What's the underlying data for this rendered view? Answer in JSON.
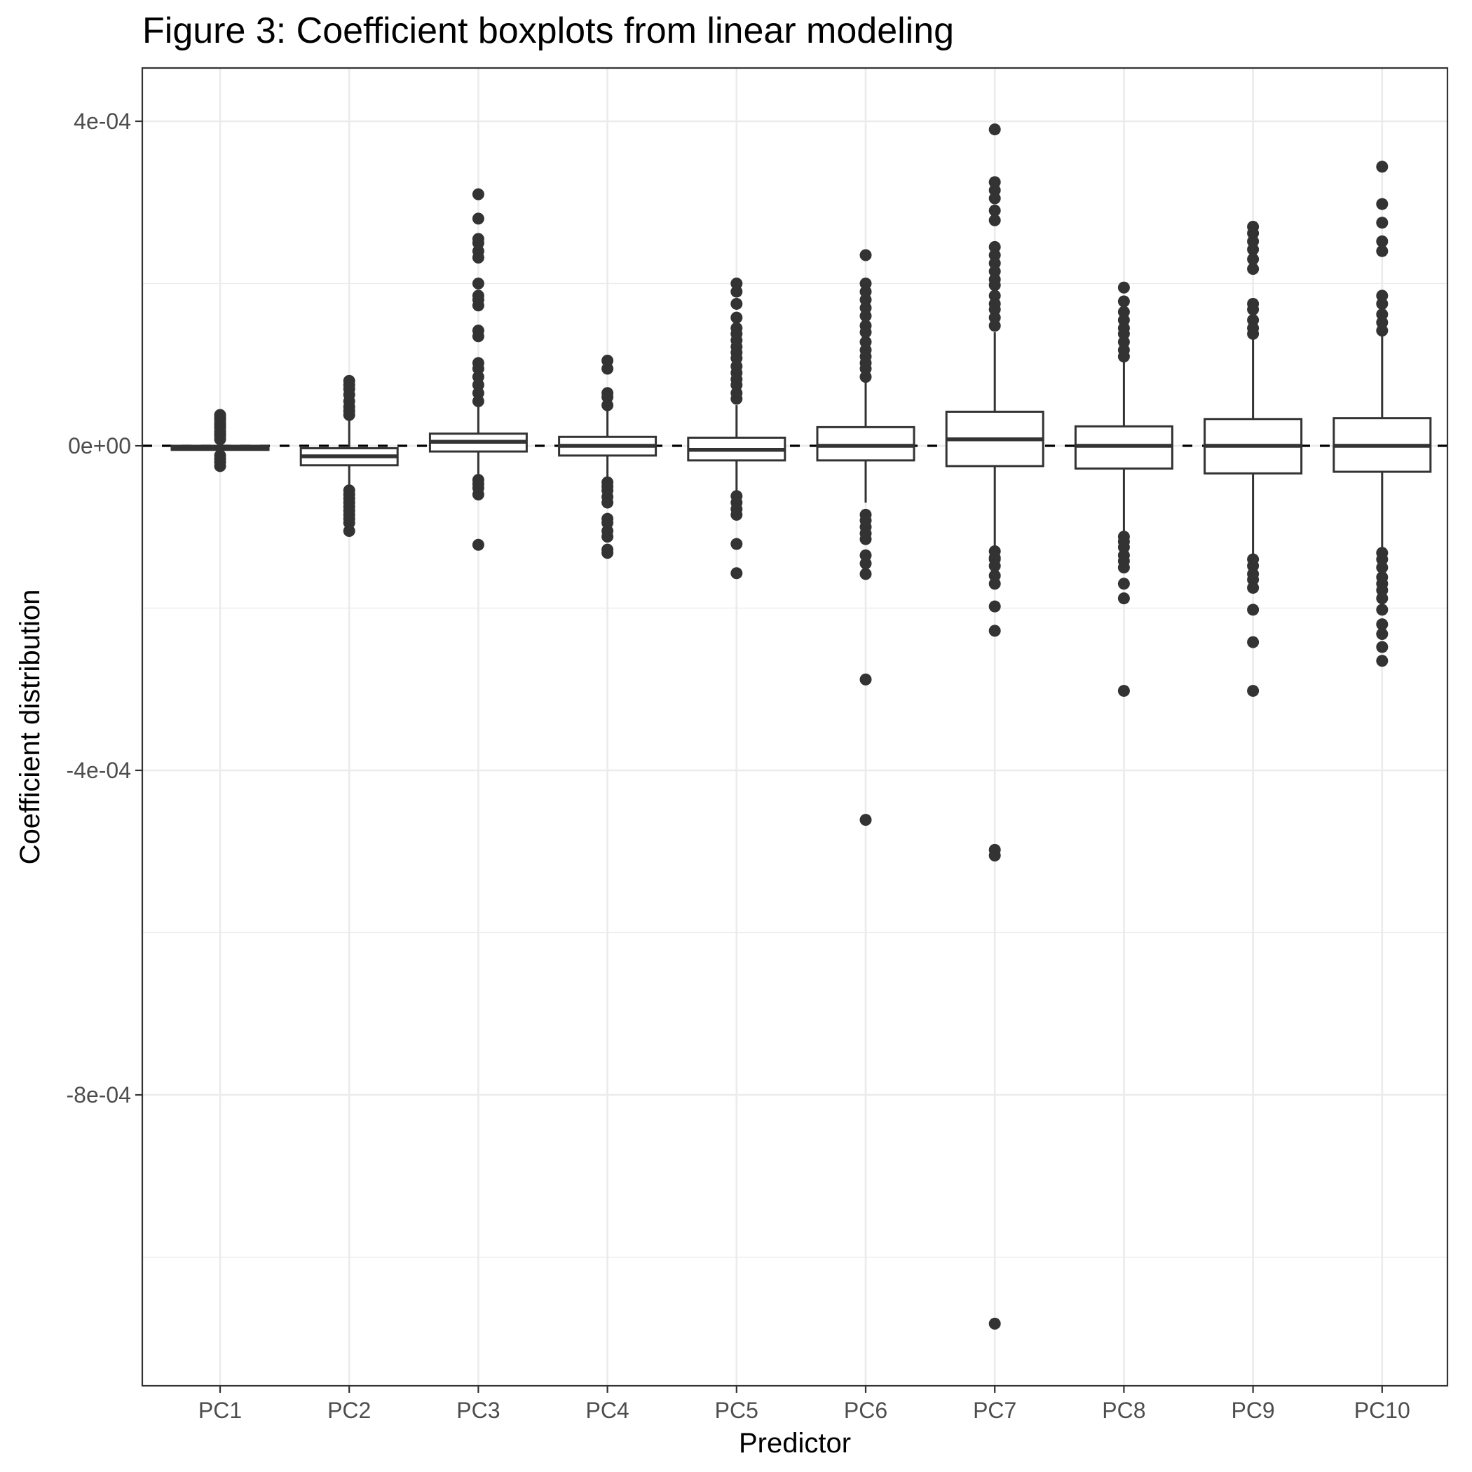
{
  "chart_data": {
    "type": "boxplot",
    "title": "Figure 3: Coefficient boxplots from linear modeling",
    "xlabel": "Predictor",
    "ylabel": "Coefficient distribution",
    "ylim": [
      -0.00113,
      0.00046
    ],
    "yticks": [
      0.0004,
      0,
      -0.0004,
      -0.0008
    ],
    "ytick_labels": [
      "4e-04",
      "0e+00",
      "-4e-04",
      "-8e-04"
    ],
    "grid": true,
    "reference_line": {
      "y": 0,
      "style": "dashed"
    },
    "categories": [
      "PC1",
      "PC2",
      "PC3",
      "PC4",
      "PC5",
      "PC6",
      "PC7",
      "PC8",
      "PC9",
      "PC10"
    ],
    "boxes": [
      {
        "category": "PC1",
        "low": -5e-06,
        "q1": -5e-06,
        "median": -3e-06,
        "q3": 0.0,
        "high": 0.0,
        "outliers": [
          3.8e-05,
          3.5e-05,
          3.2e-05,
          2.8e-05,
          2.5e-05,
          2.2e-05,
          1.8e-05,
          1.5e-05,
          1.2e-05,
          8e-06,
          -1.2e-05,
          -1.6e-05,
          -2e-05,
          -2.5e-05
        ]
      },
      {
        "category": "PC2",
        "low": -5e-05,
        "q1": -2.4e-05,
        "median": -1.3e-05,
        "q3": -3e-06,
        "high": 3.3e-05,
        "outliers": [
          8e-05,
          7.5e-05,
          7e-05,
          6.3e-05,
          5.5e-05,
          4.8e-05,
          4.3e-05,
          3.8e-05,
          -5.5e-05,
          -6e-05,
          -6.5e-05,
          -7e-05,
          -7.5e-05,
          -8e-05,
          -8.5e-05,
          -9e-05,
          -9.5e-05,
          -0.000105
        ]
      },
      {
        "category": "PC3",
        "low": -3.5e-05,
        "q1": -7e-06,
        "median": 5e-06,
        "q3": 1.5e-05,
        "high": 4.8e-05,
        "outliers": [
          0.00031,
          0.00028,
          0.000255,
          0.00025,
          0.00024,
          0.000232,
          0.0002,
          0.000185,
          0.00018,
          0.000173,
          0.000142,
          0.000135,
          0.000102,
          9.5e-05,
          8.5e-05,
          7.5e-05,
          6.5e-05,
          5.5e-05,
          -4.2e-05,
          -4.7e-05,
          -5.2e-05,
          -6e-05,
          -0.000122
        ]
      },
      {
        "category": "PC4",
        "low": -4e-05,
        "q1": -1.2e-05,
        "median": 0.0,
        "q3": 1.1e-05,
        "high": 4.5e-05,
        "outliers": [
          0.000105,
          9.5e-05,
          6.5e-05,
          6e-05,
          5e-05,
          -4.5e-05,
          -5e-05,
          -5.5e-05,
          -6.3e-05,
          -7e-05,
          -9e-05,
          -9.5e-05,
          -0.000105,
          -0.000112,
          -0.000128,
          -0.000132
        ]
      },
      {
        "category": "PC5",
        "low": -5.8e-05,
        "q1": -1.8e-05,
        "median": -5e-06,
        "q3": 1e-05,
        "high": 5e-05,
        "outliers": [
          0.0002,
          0.00019,
          0.000175,
          0.000158,
          0.000145,
          0.000138,
          0.00013,
          0.000122,
          0.000115,
          0.000108,
          9.8e-05,
          9e-05,
          8.2e-05,
          7.5e-05,
          6.5e-05,
          5.8e-05,
          -6.2e-05,
          -7e-05,
          -7.8e-05,
          -8.5e-05,
          -0.000121,
          -0.000157
        ]
      },
      {
        "category": "PC6",
        "low": -7e-05,
        "q1": -1.8e-05,
        "median": 0.0,
        "q3": 2.3e-05,
        "high": 8e-05,
        "outliers": [
          0.000235,
          0.0002,
          0.00019,
          0.00018,
          0.00017,
          0.00016,
          0.000148,
          0.00014,
          0.000128,
          0.000118,
          0.00011,
          0.000102,
          9.5e-05,
          8.5e-05,
          -8.5e-05,
          -9.2e-05,
          -0.0001,
          -0.000108,
          -0.000115,
          -0.000135,
          -0.000145,
          -0.000158,
          -0.000288,
          -0.000461
        ]
      },
      {
        "category": "PC7",
        "low": -0.000125,
        "q1": -2.5e-05,
        "median": 8e-06,
        "q3": 4.2e-05,
        "high": 0.00014,
        "outliers": [
          0.00039,
          0.000325,
          0.000315,
          0.000305,
          0.00029,
          0.000278,
          0.000245,
          0.000235,
          0.000225,
          0.000215,
          0.000205,
          0.000198,
          0.000185,
          0.000175,
          0.000168,
          0.000158,
          0.000148,
          -0.00013,
          -0.000138,
          -0.00014,
          -0.000148,
          -0.00016,
          -0.00017,
          -0.000198,
          -0.000228,
          -0.000498,
          -0.000505,
          -0.001082
        ]
      },
      {
        "category": "PC8",
        "low": -0.00011,
        "q1": -2.8e-05,
        "median": 0.0,
        "q3": 2.4e-05,
        "high": 0.000104,
        "outliers": [
          0.000195,
          0.000178,
          0.000165,
          0.000155,
          0.000145,
          0.000138,
          0.000128,
          0.000118,
          0.00011,
          -0.000112,
          -0.000118,
          -0.000125,
          -0.000135,
          -0.000142,
          -0.00015,
          -0.00017,
          -0.000188,
          -0.000302
        ]
      },
      {
        "category": "PC9",
        "low": -0.000135,
        "q1": -3.4e-05,
        "median": 0.0,
        "q3": 3.3e-05,
        "high": 0.000132,
        "outliers": [
          0.00027,
          0.000262,
          0.000252,
          0.000242,
          0.00023,
          0.000218,
          0.000175,
          0.000168,
          0.000155,
          0.000145,
          0.000138,
          -0.00014,
          -0.000148,
          -0.000158,
          -0.000165,
          -0.000175,
          -0.000202,
          -0.000242,
          -0.000302
        ]
      },
      {
        "category": "PC10",
        "low": -0.000128,
        "q1": -3.2e-05,
        "median": 0.0,
        "q3": 3.4e-05,
        "high": 0.000135,
        "outliers": [
          0.000344,
          0.000298,
          0.000275,
          0.000252,
          0.00024,
          0.000185,
          0.000175,
          0.000162,
          0.000152,
          0.000142,
          -0.000132,
          -0.00014,
          -0.00015,
          -0.000162,
          -0.00017,
          -0.000178,
          -0.000188,
          -0.000202,
          -0.00022,
          -0.000232,
          -0.000248,
          -0.000265
        ]
      }
    ]
  }
}
